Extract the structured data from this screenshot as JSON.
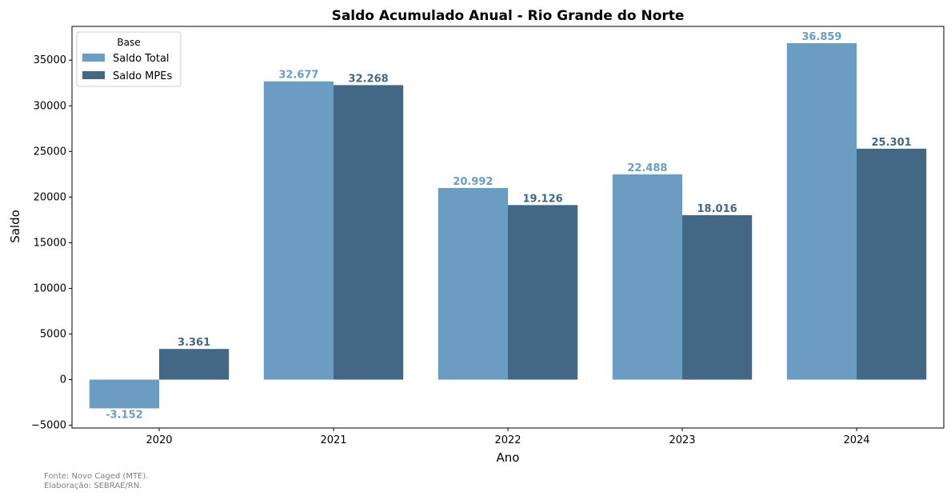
{
  "chart_data": {
    "type": "bar",
    "title": "Saldo Acumulado Anual - Rio Grande do Norte",
    "xlabel": "Ano",
    "ylabel": "Saldo",
    "categories": [
      "2020",
      "2021",
      "2022",
      "2023",
      "2024"
    ],
    "ylim": [
      -5300,
      38700
    ],
    "yticks": [
      -5000,
      0,
      5000,
      10000,
      15000,
      20000,
      25000,
      30000,
      35000
    ],
    "ytick_labels": [
      "−5000",
      "0",
      "5000",
      "10000",
      "15000",
      "20000",
      "25000",
      "30000",
      "35000"
    ],
    "grid": false,
    "legend": {
      "title": "Base",
      "placement": "top-left"
    },
    "series": [
      {
        "name": "Saldo Total",
        "color": "#6a9dc1",
        "values": [
          -3152,
          32677,
          20992,
          22488,
          36859
        ],
        "labels": [
          "-3.152",
          "32.677",
          "20.992",
          "22.488",
          "36.859"
        ]
      },
      {
        "name": "Saldo MPEs",
        "color": "#426885",
        "values": [
          3361,
          32268,
          19126,
          18016,
          25301
        ],
        "labels": [
          "3.361",
          "32.268",
          "19.126",
          "18.016",
          "25.301"
        ]
      }
    ]
  },
  "footer": {
    "source": "Fonte: Novo Caged (MTE).",
    "credit": "Elaboração: SEBRAE/RN."
  }
}
